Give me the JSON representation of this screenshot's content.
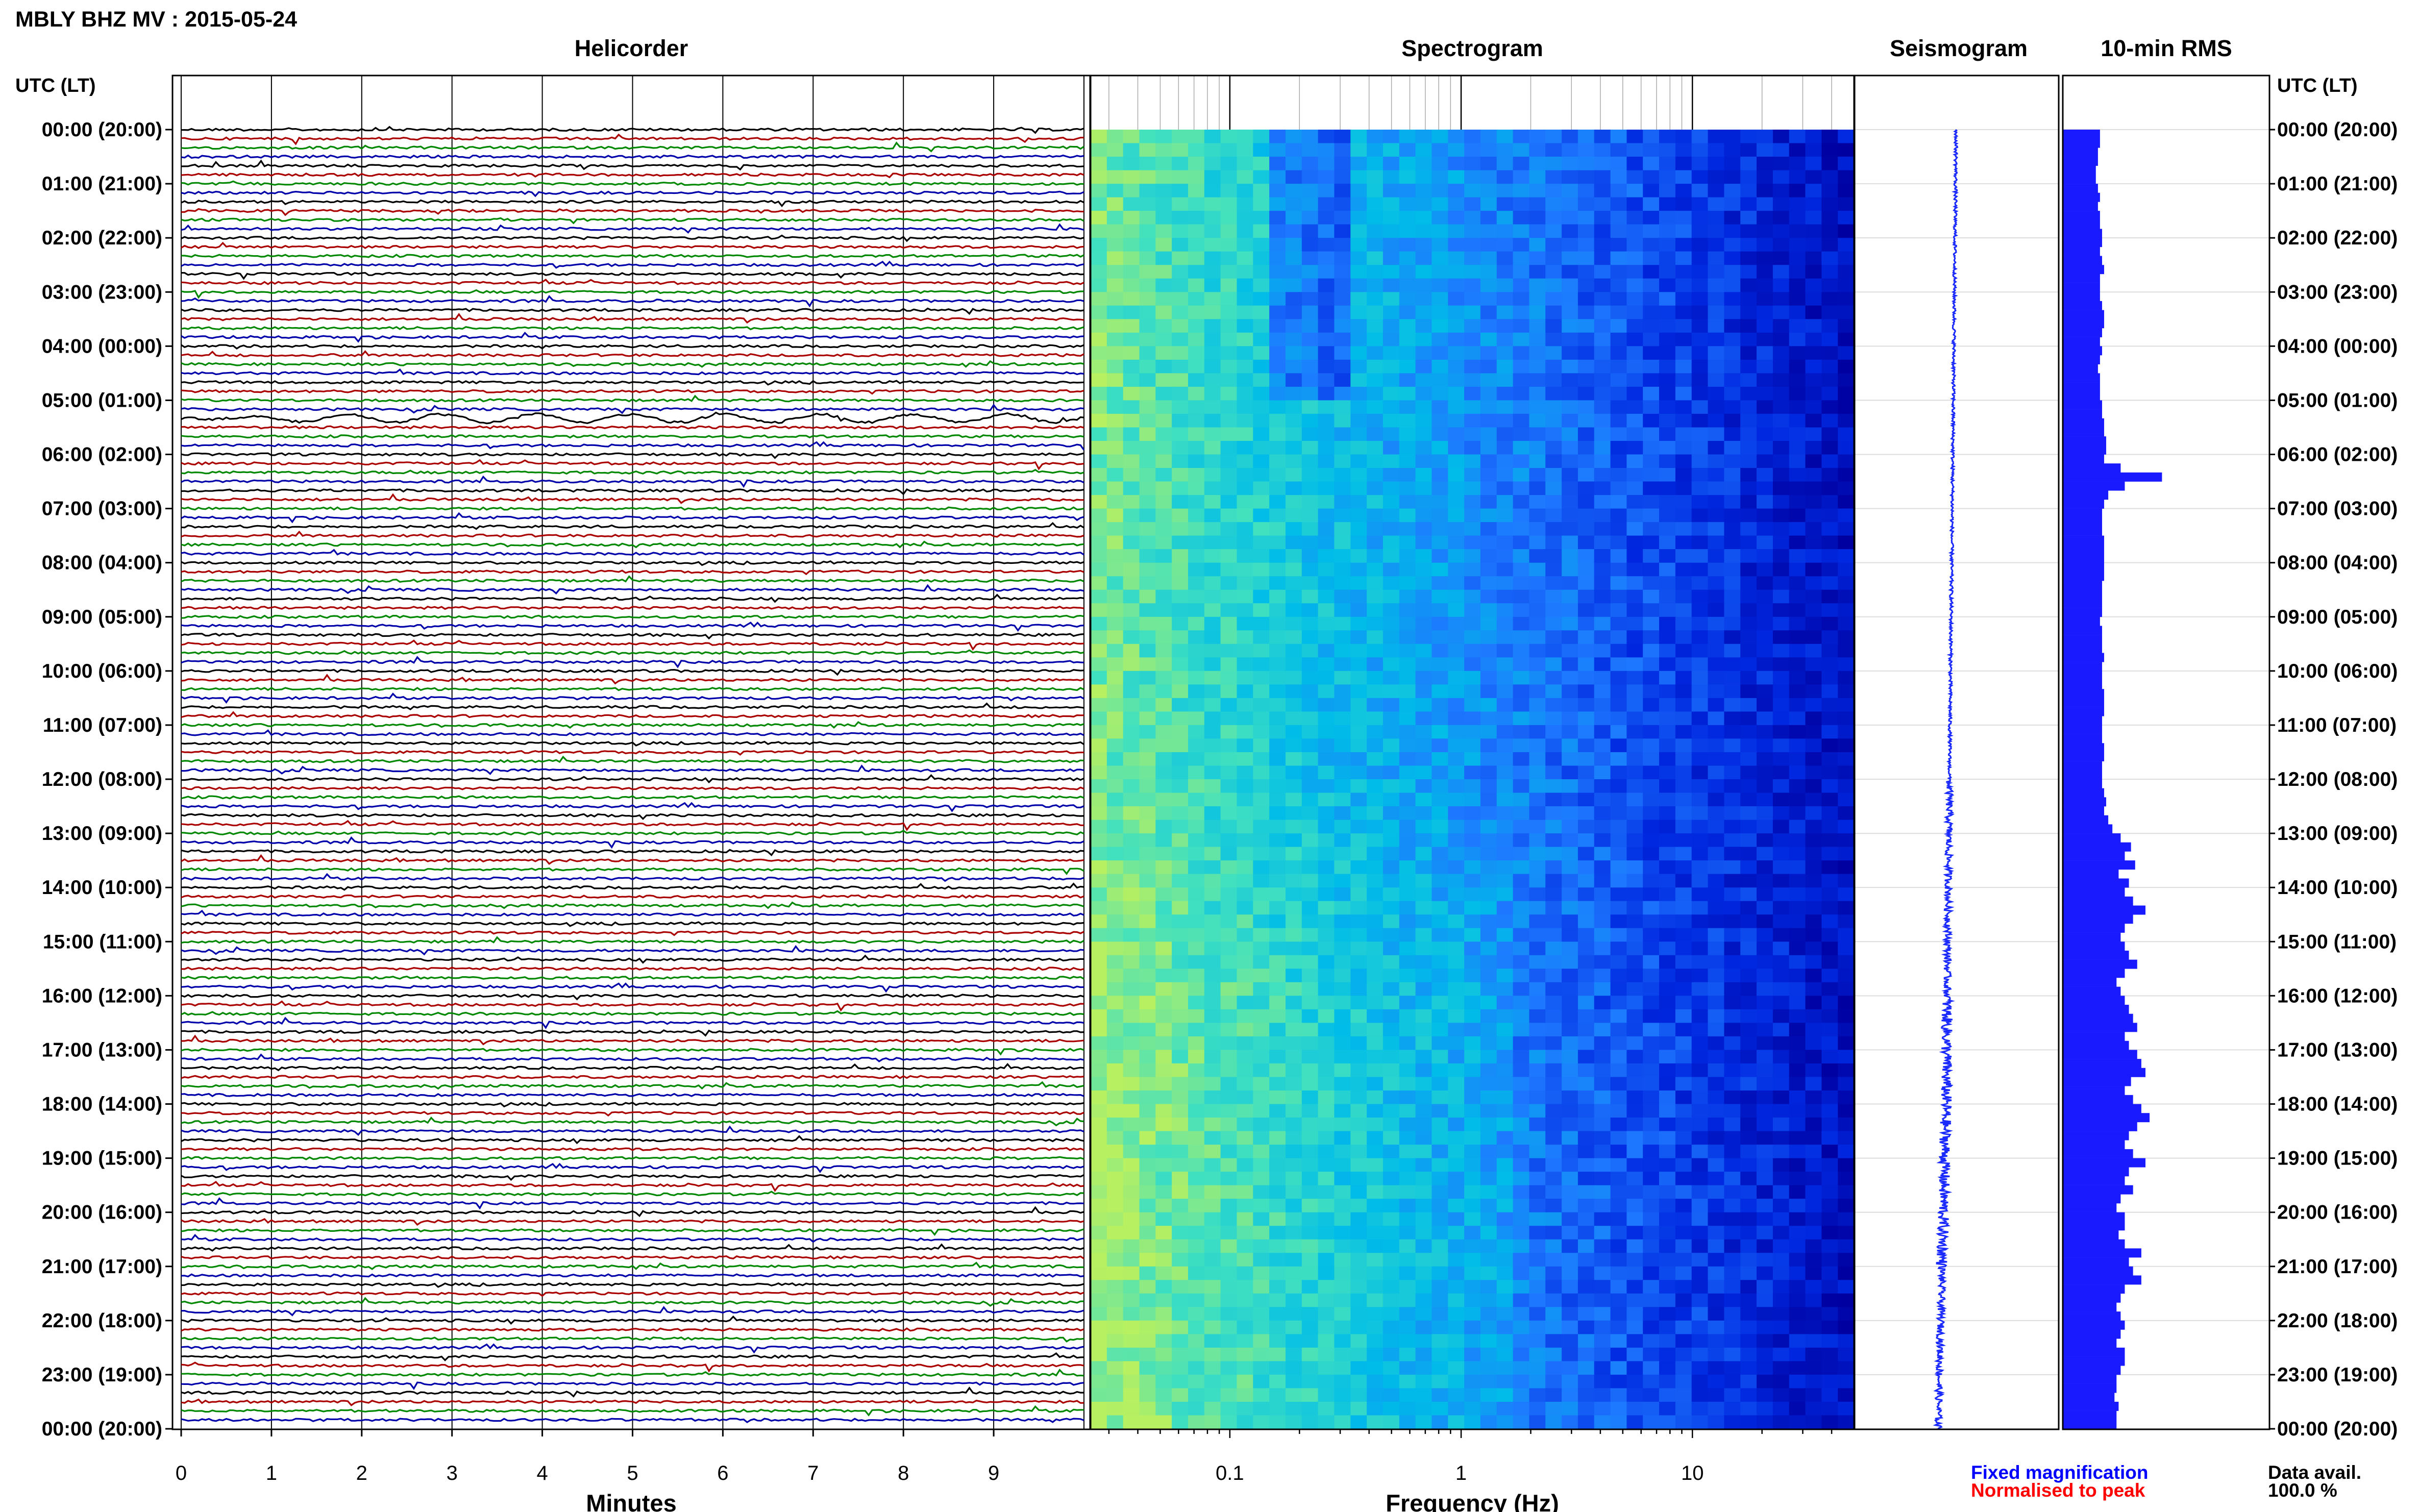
{
  "header": {
    "title": "MBLY BHZ MV : 2015-05-24",
    "utc_label": "UTC (LT)"
  },
  "panels": {
    "helicorder": "Helicorder",
    "spectrogram": "Spectrogram",
    "seismogram": "Seismogram",
    "rms": "10-min RMS"
  },
  "legend": {
    "fixed": "Fixed magnification",
    "normalised": "Normalised to peak",
    "fixed_color": "#0000ff",
    "normalised_color": "#ff0000"
  },
  "data_avail": {
    "label": "Data avail.",
    "value": "100.0 %"
  },
  "chart_data": [
    {
      "type": "line",
      "title": "Helicorder",
      "xlabel": "Minutes",
      "x_ticks": [
        "0",
        "1",
        "2",
        "3",
        "4",
        "5",
        "6",
        "7",
        "8",
        "9"
      ],
      "xlim": [
        0,
        10
      ],
      "y_tick_labels": [
        "00:00 (20:00)",
        "01:00 (21:00)",
        "02:00 (22:00)",
        "03:00 (23:00)",
        "04:00 (00:00)",
        "05:00 (01:00)",
        "06:00 (02:00)",
        "07:00 (03:00)",
        "08:00 (04:00)",
        "09:00 (05:00)",
        "10:00 (06:00)",
        "11:00 (07:00)",
        "12:00 (08:00)",
        "13:00 (09:00)",
        "14:00 (10:00)",
        "15:00 (11:00)",
        "16:00 (12:00)",
        "17:00 (13:00)",
        "18:00 (14:00)",
        "19:00 (15:00)",
        "20:00 (16:00)",
        "21:00 (17:00)",
        "22:00 (18:00)",
        "23:00 (19:00)",
        "00:00 (20:00)"
      ],
      "trace_colors": [
        "#000000",
        "#aa0000",
        "#008800",
        "#0000aa"
      ],
      "rows": 144,
      "grid": true
    },
    {
      "type": "heatmap",
      "title": "Spectrogram",
      "xlabel": "Frequency (Hz)",
      "x_scale": "log",
      "xlim": [
        0.025,
        50
      ],
      "x_ticks": [
        "0.1",
        "1",
        "10"
      ],
      "colormap": [
        "#0000a0",
        "#0028e0",
        "#1e78ff",
        "#00bce8",
        "#40e0c0",
        "#b8f060"
      ]
    },
    {
      "type": "line",
      "title": "Seismogram",
      "color": "#1a2aff"
    },
    {
      "type": "bar",
      "title": "10-min RMS",
      "orientation": "horizontal",
      "color": "#1a1aff",
      "bins": 144,
      "values": [
        0.18,
        0.18,
        0.17,
        0.17,
        0.16,
        0.16,
        0.17,
        0.18,
        0.17,
        0.18,
        0.18,
        0.19,
        0.19,
        0.18,
        0.19,
        0.2,
        0.18,
        0.18,
        0.18,
        0.19,
        0.2,
        0.2,
        0.19,
        0.18,
        0.19,
        0.18,
        0.17,
        0.18,
        0.18,
        0.18,
        0.19,
        0.19,
        0.2,
        0.2,
        0.21,
        0.21,
        0.2,
        0.28,
        0.48,
        0.3,
        0.22,
        0.2,
        0.19,
        0.19,
        0.19,
        0.2,
        0.2,
        0.2,
        0.2,
        0.2,
        0.19,
        0.19,
        0.19,
        0.19,
        0.18,
        0.19,
        0.19,
        0.19,
        0.2,
        0.19,
        0.19,
        0.19,
        0.2,
        0.2,
        0.2,
        0.19,
        0.19,
        0.19,
        0.2,
        0.2,
        0.19,
        0.19,
        0.19,
        0.2,
        0.21,
        0.2,
        0.22,
        0.24,
        0.28,
        0.33,
        0.3,
        0.35,
        0.27,
        0.32,
        0.3,
        0.34,
        0.4,
        0.34,
        0.3,
        0.28,
        0.3,
        0.32,
        0.36,
        0.3,
        0.26,
        0.28,
        0.3,
        0.32,
        0.34,
        0.36,
        0.3,
        0.32,
        0.36,
        0.38,
        0.4,
        0.33,
        0.3,
        0.34,
        0.38,
        0.42,
        0.36,
        0.32,
        0.3,
        0.34,
        0.4,
        0.32,
        0.3,
        0.34,
        0.28,
        0.26,
        0.3,
        0.3,
        0.27,
        0.3,
        0.38,
        0.32,
        0.34,
        0.38,
        0.3,
        0.28,
        0.26,
        0.28,
        0.3,
        0.28,
        0.26,
        0.3,
        0.3,
        0.28,
        0.26,
        0.26,
        0.25,
        0.27,
        0.26,
        0.26
      ]
    }
  ]
}
